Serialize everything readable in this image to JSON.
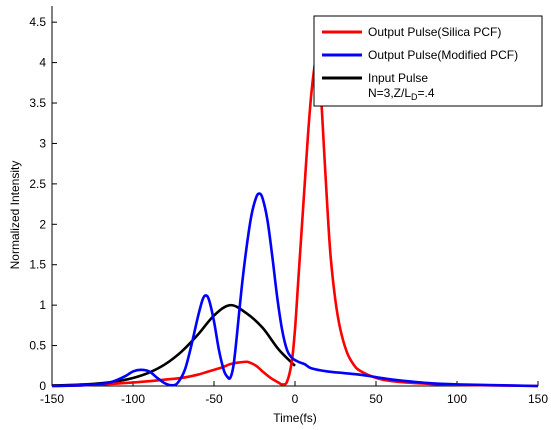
{
  "chart_data": {
    "type": "line",
    "xlabel": "Time(fs)",
    "ylabel": "Normalized Intensity",
    "xlim": [
      -150,
      150
    ],
    "ylim": [
      0,
      4.7
    ],
    "xticks": [
      -150,
      -100,
      -50,
      0,
      50,
      100,
      150
    ],
    "yticks": [
      0,
      0.5,
      1,
      1.5,
      2,
      2.5,
      3,
      3.5,
      4,
      4.5
    ],
    "xtick_labels": [
      "-150",
      "-100",
      "-50",
      "0",
      "50",
      "100",
      "150"
    ],
    "ytick_labels": [
      "0",
      "0.5",
      "1",
      "1.5",
      "2",
      "2.5",
      "3",
      "3.5",
      "4",
      "4.5"
    ],
    "grid": false,
    "legend_position": "top-right",
    "legend_note": {
      "line1": "N=3,Z/L",
      "sub": "D",
      "line2": "=.4"
    },
    "series": [
      {
        "name": "Output Pulse(Silica PCF)",
        "color": "#ff0000",
        "points": [
          [
            -150,
            0
          ],
          [
            -130,
            0.01
          ],
          [
            -110,
            0.03
          ],
          [
            -90,
            0.06
          ],
          [
            -80,
            0.08
          ],
          [
            -70,
            0.1
          ],
          [
            -60,
            0.14
          ],
          [
            -55,
            0.17
          ],
          [
            -50,
            0.2
          ],
          [
            -45,
            0.23
          ],
          [
            -40,
            0.27
          ],
          [
            -35,
            0.29
          ],
          [
            -30,
            0.3
          ],
          [
            -28,
            0.29
          ],
          [
            -24,
            0.25
          ],
          [
            -20,
            0.18
          ],
          [
            -15,
            0.1
          ],
          [
            -10,
            0.04
          ],
          [
            -8,
            0.02
          ],
          [
            -5,
            0.05
          ],
          [
            -2,
            0.3
          ],
          [
            0,
            0.7
          ],
          [
            2,
            1.3
          ],
          [
            4,
            1.9
          ],
          [
            6,
            2.5
          ],
          [
            8,
            3.1
          ],
          [
            10,
            3.6
          ],
          [
            12,
            3.95
          ],
          [
            13,
            4.05
          ],
          [
            14,
            4.0
          ],
          [
            16,
            3.6
          ],
          [
            18,
            2.9
          ],
          [
            20,
            2.2
          ],
          [
            22,
            1.6
          ],
          [
            25,
            1.05
          ],
          [
            28,
            0.7
          ],
          [
            32,
            0.42
          ],
          [
            36,
            0.27
          ],
          [
            40,
            0.19
          ],
          [
            50,
            0.1
          ],
          [
            60,
            0.06
          ],
          [
            80,
            0.03
          ],
          [
            100,
            0.015
          ],
          [
            150,
            0
          ]
        ]
      },
      {
        "name": "Output Pulse(Modified PCF)",
        "color": "#0000ff",
        "points": [
          [
            -150,
            0
          ],
          [
            -130,
            0.01
          ],
          [
            -115,
            0.04
          ],
          [
            -105,
            0.12
          ],
          [
            -100,
            0.18
          ],
          [
            -95,
            0.2
          ],
          [
            -90,
            0.18
          ],
          [
            -85,
            0.1
          ],
          [
            -80,
            0.03
          ],
          [
            -75,
            0.01
          ],
          [
            -72,
            0.05
          ],
          [
            -68,
            0.2
          ],
          [
            -64,
            0.5
          ],
          [
            -60,
            0.85
          ],
          [
            -57,
            1.07
          ],
          [
            -55,
            1.12
          ],
          [
            -53,
            1.06
          ],
          [
            -50,
            0.8
          ],
          [
            -47,
            0.45
          ],
          [
            -44,
            0.2
          ],
          [
            -42,
            0.12
          ],
          [
            -40,
            0.1
          ],
          [
            -38,
            0.25
          ],
          [
            -36,
            0.6
          ],
          [
            -33,
            1.2
          ],
          [
            -30,
            1.7
          ],
          [
            -27,
            2.1
          ],
          [
            -24,
            2.33
          ],
          [
            -22,
            2.38
          ],
          [
            -20,
            2.32
          ],
          [
            -17,
            2.05
          ],
          [
            -14,
            1.6
          ],
          [
            -11,
            1.1
          ],
          [
            -8,
            0.7
          ],
          [
            -5,
            0.45
          ],
          [
            -2,
            0.35
          ],
          [
            2,
            0.3
          ],
          [
            6,
            0.27
          ],
          [
            10,
            0.22
          ],
          [
            20,
            0.18
          ],
          [
            30,
            0.16
          ],
          [
            40,
            0.14
          ],
          [
            50,
            0.11
          ],
          [
            60,
            0.08
          ],
          [
            80,
            0.04
          ],
          [
            100,
            0.02
          ],
          [
            150,
            0
          ]
        ]
      },
      {
        "name": "Input Pulse",
        "color": "#000000",
        "points": [
          [
            -150,
            0.0064
          ],
          [
            -140,
            0.011
          ],
          [
            -130,
            0.0193
          ],
          [
            -120,
            0.0336
          ],
          [
            -110,
            0.0581
          ],
          [
            -100,
            0.0992
          ],
          [
            -90,
            0.1662
          ],
          [
            -80,
            0.2713
          ],
          [
            -70,
            0.4261
          ],
          [
            -60,
            0.6334
          ],
          [
            -50,
            0.8715
          ],
          [
            -40,
            1.0
          ],
          [
            -30,
            0.9
          ],
          [
            -20,
            0.72
          ],
          [
            -10,
            0.45
          ],
          [
            0,
            0.25
          ]
        ]
      }
    ]
  }
}
